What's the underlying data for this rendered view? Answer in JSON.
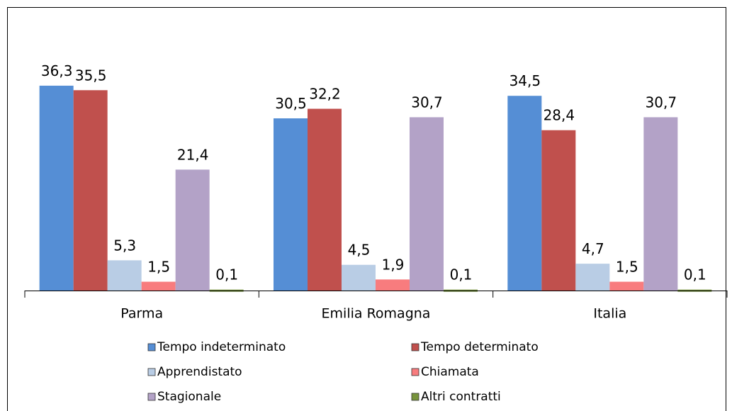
{
  "chart_data": {
    "type": "bar",
    "categories": [
      "Parma",
      "Emilia Romagna",
      "Italia"
    ],
    "series": [
      {
        "name": "Tempo indeterminato",
        "color": "#558ed5",
        "values": [
          36.3,
          30.5,
          34.5
        ],
        "value_labels": [
          "36,3",
          "30,5",
          "34,5"
        ]
      },
      {
        "name": "Tempo determinato",
        "color": "#c0504d",
        "values": [
          35.5,
          32.2,
          28.4
        ],
        "value_labels": [
          "35,5",
          "32,2",
          "28,4"
        ]
      },
      {
        "name": "Apprendistato",
        "color": "#b9cde5",
        "values": [
          5.3,
          4.5,
          4.7
        ],
        "value_labels": [
          "5,3",
          "4,5",
          "4,7"
        ]
      },
      {
        "name": "Chiamata",
        "color": "#f87c7e",
        "values": [
          1.5,
          1.9,
          1.5
        ],
        "value_labels": [
          "1,5",
          "1,9",
          "1,5"
        ]
      },
      {
        "name": "Stagionale",
        "color": "#b3a2c7",
        "values": [
          21.4,
          30.7,
          30.7
        ],
        "value_labels": [
          "21,4",
          "30,7",
          "30,7"
        ]
      },
      {
        "name": "Altri contratti",
        "color": "#77933c",
        "values": [
          0.1,
          0.1,
          0.1
        ],
        "value_labels": [
          "0,1",
          "0,1",
          "0,1"
        ]
      }
    ],
    "ylim": [
      0,
      40
    ],
    "legend": "bottom"
  }
}
